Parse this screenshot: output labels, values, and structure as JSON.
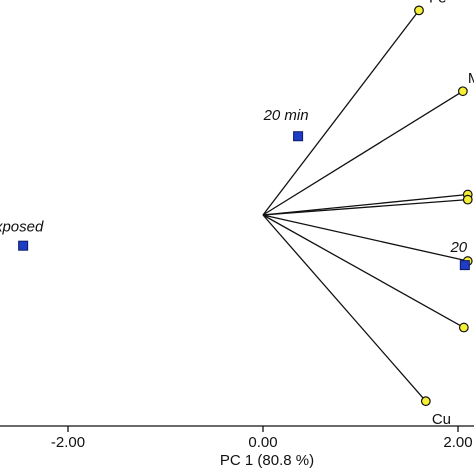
{
  "chart_data": {
    "type": "scatter",
    "subtype": "pca-biplot",
    "xlabel": "PC 1 (80.8 %)",
    "xlim": [
      -2.6,
      2.1
    ],
    "ylim": [
      -2.35,
      2.2
    ],
    "x_ticks": [
      {
        "value": -2.0,
        "label": "-2.00"
      },
      {
        "value": 0.0,
        "label": "0.00"
      },
      {
        "value": 2.0,
        "label": "2.00"
      }
    ],
    "origin": [
      0,
      0
    ],
    "samples": [
      {
        "label": "xposed",
        "x": -2.46,
        "y": -0.3,
        "color": "#1f3fbf"
      },
      {
        "label": "20 min",
        "x": 0.36,
        "y": 0.77,
        "color": "#1f3fbf"
      },
      {
        "label": "20",
        "x": 2.07,
        "y": -0.49,
        "color": "#1f3fbf"
      }
    ],
    "loadings": [
      {
        "label": "Fe",
        "x": 1.6,
        "y": 2.0,
        "color": "#f7f13a"
      },
      {
        "label": "M",
        "x": 2.05,
        "y": 1.21
      },
      {
        "label": "",
        "x": 2.1,
        "y": 0.2
      },
      {
        "label": "",
        "x": 2.1,
        "y": 0.15
      },
      {
        "label": "",
        "x": 2.1,
        "y": -0.45
      },
      {
        "label": "",
        "x": 2.06,
        "y": -1.1
      },
      {
        "label": "Cu",
        "x": 1.67,
        "y": -1.82
      }
    ],
    "grid": false,
    "legend": false
  }
}
